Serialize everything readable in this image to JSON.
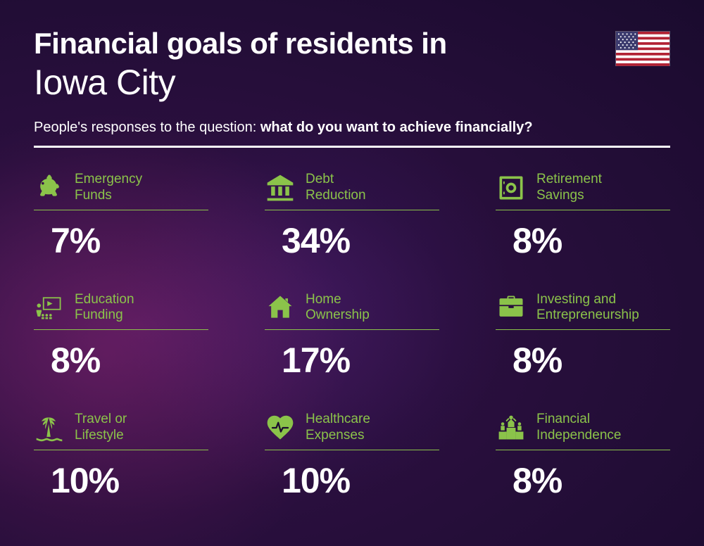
{
  "header": {
    "title_line1": "Financial goals of residents in",
    "title_line2": "Iowa City",
    "subtitle_prefix": "People's responses to the question: ",
    "subtitle_bold": "what do you want to achieve financially?"
  },
  "styling": {
    "accent_color": "#8bc34a",
    "background_gradient": [
      "#4a1a5a",
      "#2a0f3e",
      "#1a0b2e"
    ],
    "title_fontsize": 42,
    "city_fontsize": 50,
    "subtitle_fontsize": 20,
    "label_fontsize": 19,
    "value_fontsize": 50,
    "grid_columns": 3,
    "grid_rows": 3
  },
  "items": [
    {
      "label": "Emergency\nFunds",
      "value": "7%",
      "icon": "piggy-bank"
    },
    {
      "label": "Debt\nReduction",
      "value": "34%",
      "icon": "bank"
    },
    {
      "label": "Retirement\nSavings",
      "value": "8%",
      "icon": "safe"
    },
    {
      "label": "Education\nFunding",
      "value": "8%",
      "icon": "presentation"
    },
    {
      "label": "Home\nOwnership",
      "value": "17%",
      "icon": "house"
    },
    {
      "label": "Investing and\nEntrepreneurship",
      "value": "8%",
      "icon": "briefcase"
    },
    {
      "label": "Travel or\nLifestyle",
      "value": "10%",
      "icon": "palm"
    },
    {
      "label": "Healthcare\nExpenses",
      "value": "10%",
      "icon": "heart"
    },
    {
      "label": "Financial\nIndependence",
      "value": "8%",
      "icon": "podium"
    }
  ]
}
